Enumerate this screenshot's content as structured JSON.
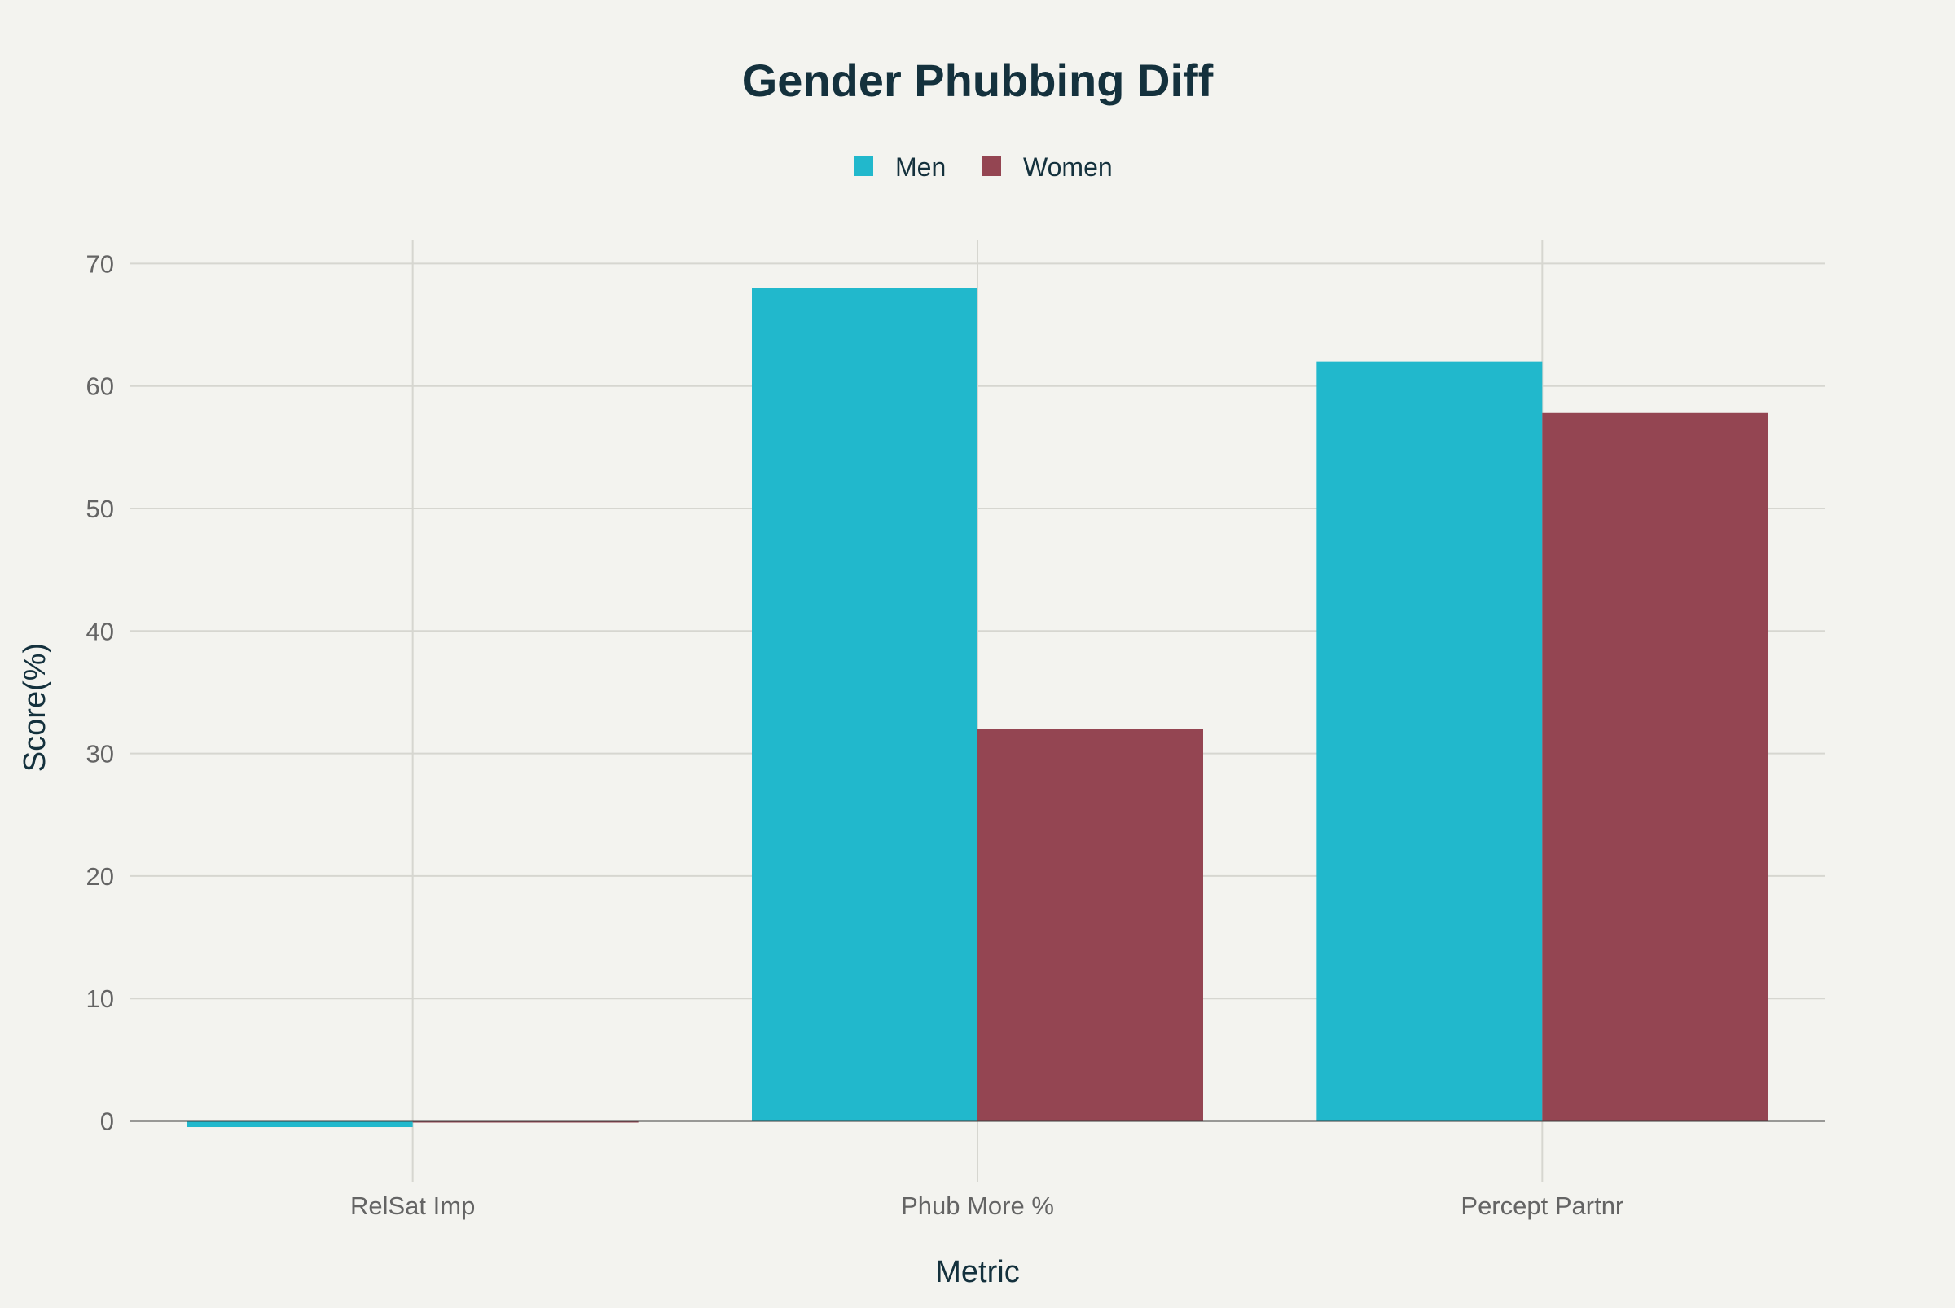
{
  "chart_data": {
    "type": "bar",
    "title": "Gender Phubbing Diff",
    "xlabel": "Metric",
    "ylabel": "Score(%)",
    "categories": [
      "RelSat Imp",
      "Phub More %",
      "Percept Partnr"
    ],
    "series": [
      {
        "name": "Men",
        "color": "#21b8cc",
        "values": [
          -0.5,
          68,
          62
        ]
      },
      {
        "name": "Women",
        "color": "#944552",
        "values": [
          -0.1,
          32,
          57.8
        ]
      }
    ],
    "ylim": [
      -5,
      72
    ],
    "yticks": [
      0,
      10,
      20,
      30,
      40,
      50,
      60,
      70
    ],
    "grid": true,
    "legend_position": "top-center",
    "background": "#f3f3ef"
  }
}
